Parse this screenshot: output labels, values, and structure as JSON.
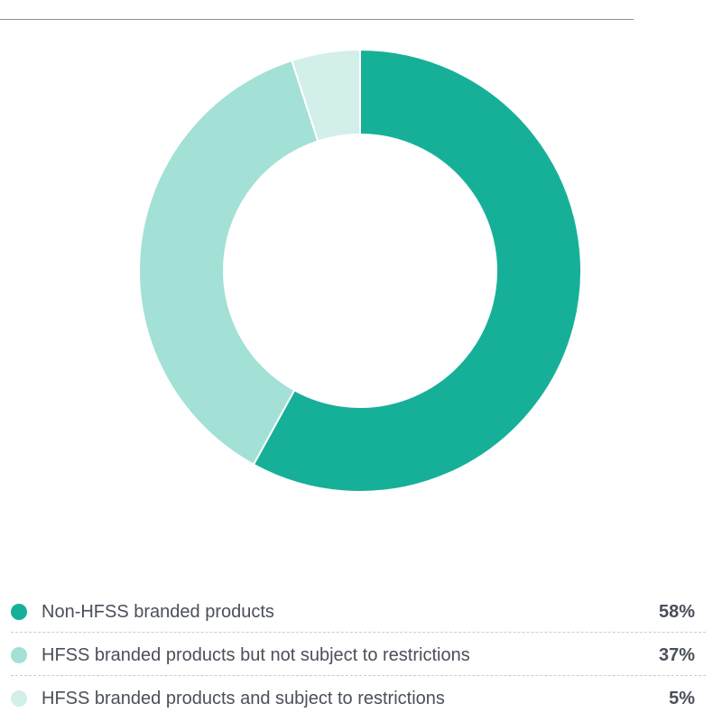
{
  "chart_data": {
    "type": "pie",
    "variant": "donut",
    "categories": [
      "Non-HFSS branded products",
      "HFSS branded products but not subject to restrictions",
      "HFSS branded products and subject to restrictions"
    ],
    "values": [
      58,
      37,
      5
    ],
    "value_labels": [
      "58%",
      "37%",
      "5%"
    ],
    "colors": [
      "#16b098",
      "#a3e0d6",
      "#d2efea"
    ],
    "legend_position": "bottom"
  }
}
